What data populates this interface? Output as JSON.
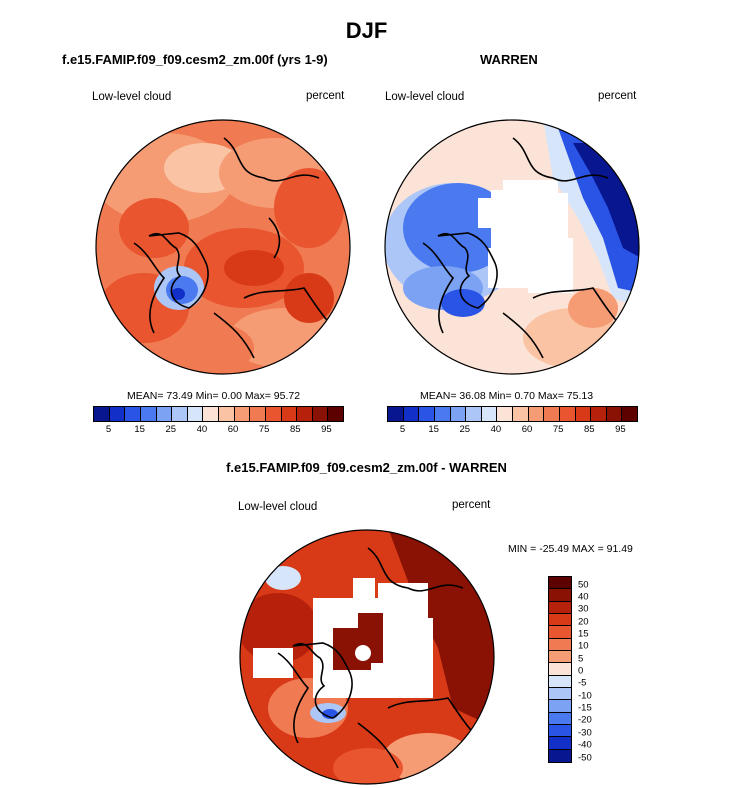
{
  "figure": {
    "title": "DJF",
    "panel1_title": "f.e15.FAMIP.f09_f09.cesm2_zm.00f (yrs 1-9)",
    "panel2_title": "WARREN",
    "panel3_title": "f.e15.FAMIP.f09_f09.cesm2_zm.00f - WARREN",
    "variable": "Low-level cloud",
    "units": "percent"
  },
  "stats": {
    "p1": "MEAN=  73.49  Min=   0.00  Max=  95.72",
    "p2": "MEAN=  36.08  Min=   0.70  Max=  75.13",
    "p3": "MIN = -25.49 MAX =  91.49"
  },
  "chart_data": [
    {
      "type": "heatmap",
      "projection": "north polar stereographic",
      "title": "f.e15.FAMIP.f09_f09.cesm2_zm.00f (yrs 1-9)",
      "label_left": "Low-level cloud",
      "label_right": "percent",
      "mean": 73.49,
      "min": 0.0,
      "max": 95.72,
      "levels": [
        5,
        10,
        15,
        20,
        25,
        30,
        40,
        50,
        60,
        70,
        75,
        80,
        85,
        90,
        95
      ],
      "colorbar_tick_labels": [
        "5",
        "15",
        "25",
        "40",
        "60",
        "75",
        "85",
        "95"
      ]
    },
    {
      "type": "heatmap",
      "projection": "north polar stereographic",
      "title": "WARREN",
      "label_left": "Low-level cloud",
      "label_right": "percent",
      "mean": 36.08,
      "min": 0.7,
      "max": 75.13,
      "levels": [
        5,
        10,
        15,
        20,
        25,
        30,
        40,
        50,
        60,
        70,
        75,
        80,
        85,
        90,
        95
      ],
      "colorbar_tick_labels": [
        "5",
        "15",
        "25",
        "40",
        "60",
        "75",
        "85",
        "95"
      ]
    },
    {
      "type": "heatmap",
      "projection": "north polar stereographic",
      "title": "f.e15.FAMIP.f09_f09.cesm2_zm.00f - WARREN",
      "label_left": "Low-level cloud",
      "label_right": "percent",
      "min": -25.49,
      "max": 91.49,
      "levels": [
        -50,
        -40,
        -30,
        -20,
        -15,
        -10,
        -5,
        0,
        5,
        10,
        15,
        20,
        30,
        40,
        50
      ],
      "colorbar_tick_labels": [
        "50",
        "40",
        "30",
        "20",
        "15",
        "10",
        "5",
        "0",
        "-5",
        "-10",
        "-15",
        "-20",
        "-30",
        "-40",
        "-50"
      ]
    }
  ],
  "colors": {
    "abs_scale": [
      "#08168f",
      "#1230c8",
      "#2a54e6",
      "#4a79f0",
      "#7ca2f4",
      "#abc6f7",
      "#d6e5fa",
      "#fbe3d7",
      "#f9c3a4",
      "#f69c75",
      "#f07a51",
      "#e8552f",
      "#d83a17",
      "#b5210a",
      "#8a1204",
      "#5c0000"
    ],
    "diff_scale": [
      "#5c0000",
      "#8a1204",
      "#b5210a",
      "#d83a17",
      "#e8552f",
      "#f07a51",
      "#f69c75",
      "#fbe3d7",
      "#d6e5fa",
      "#abc6f7",
      "#7ca2f4",
      "#4a79f0",
      "#2a54e6",
      "#1230c8",
      "#08168f"
    ],
    "coast": "#000000"
  }
}
